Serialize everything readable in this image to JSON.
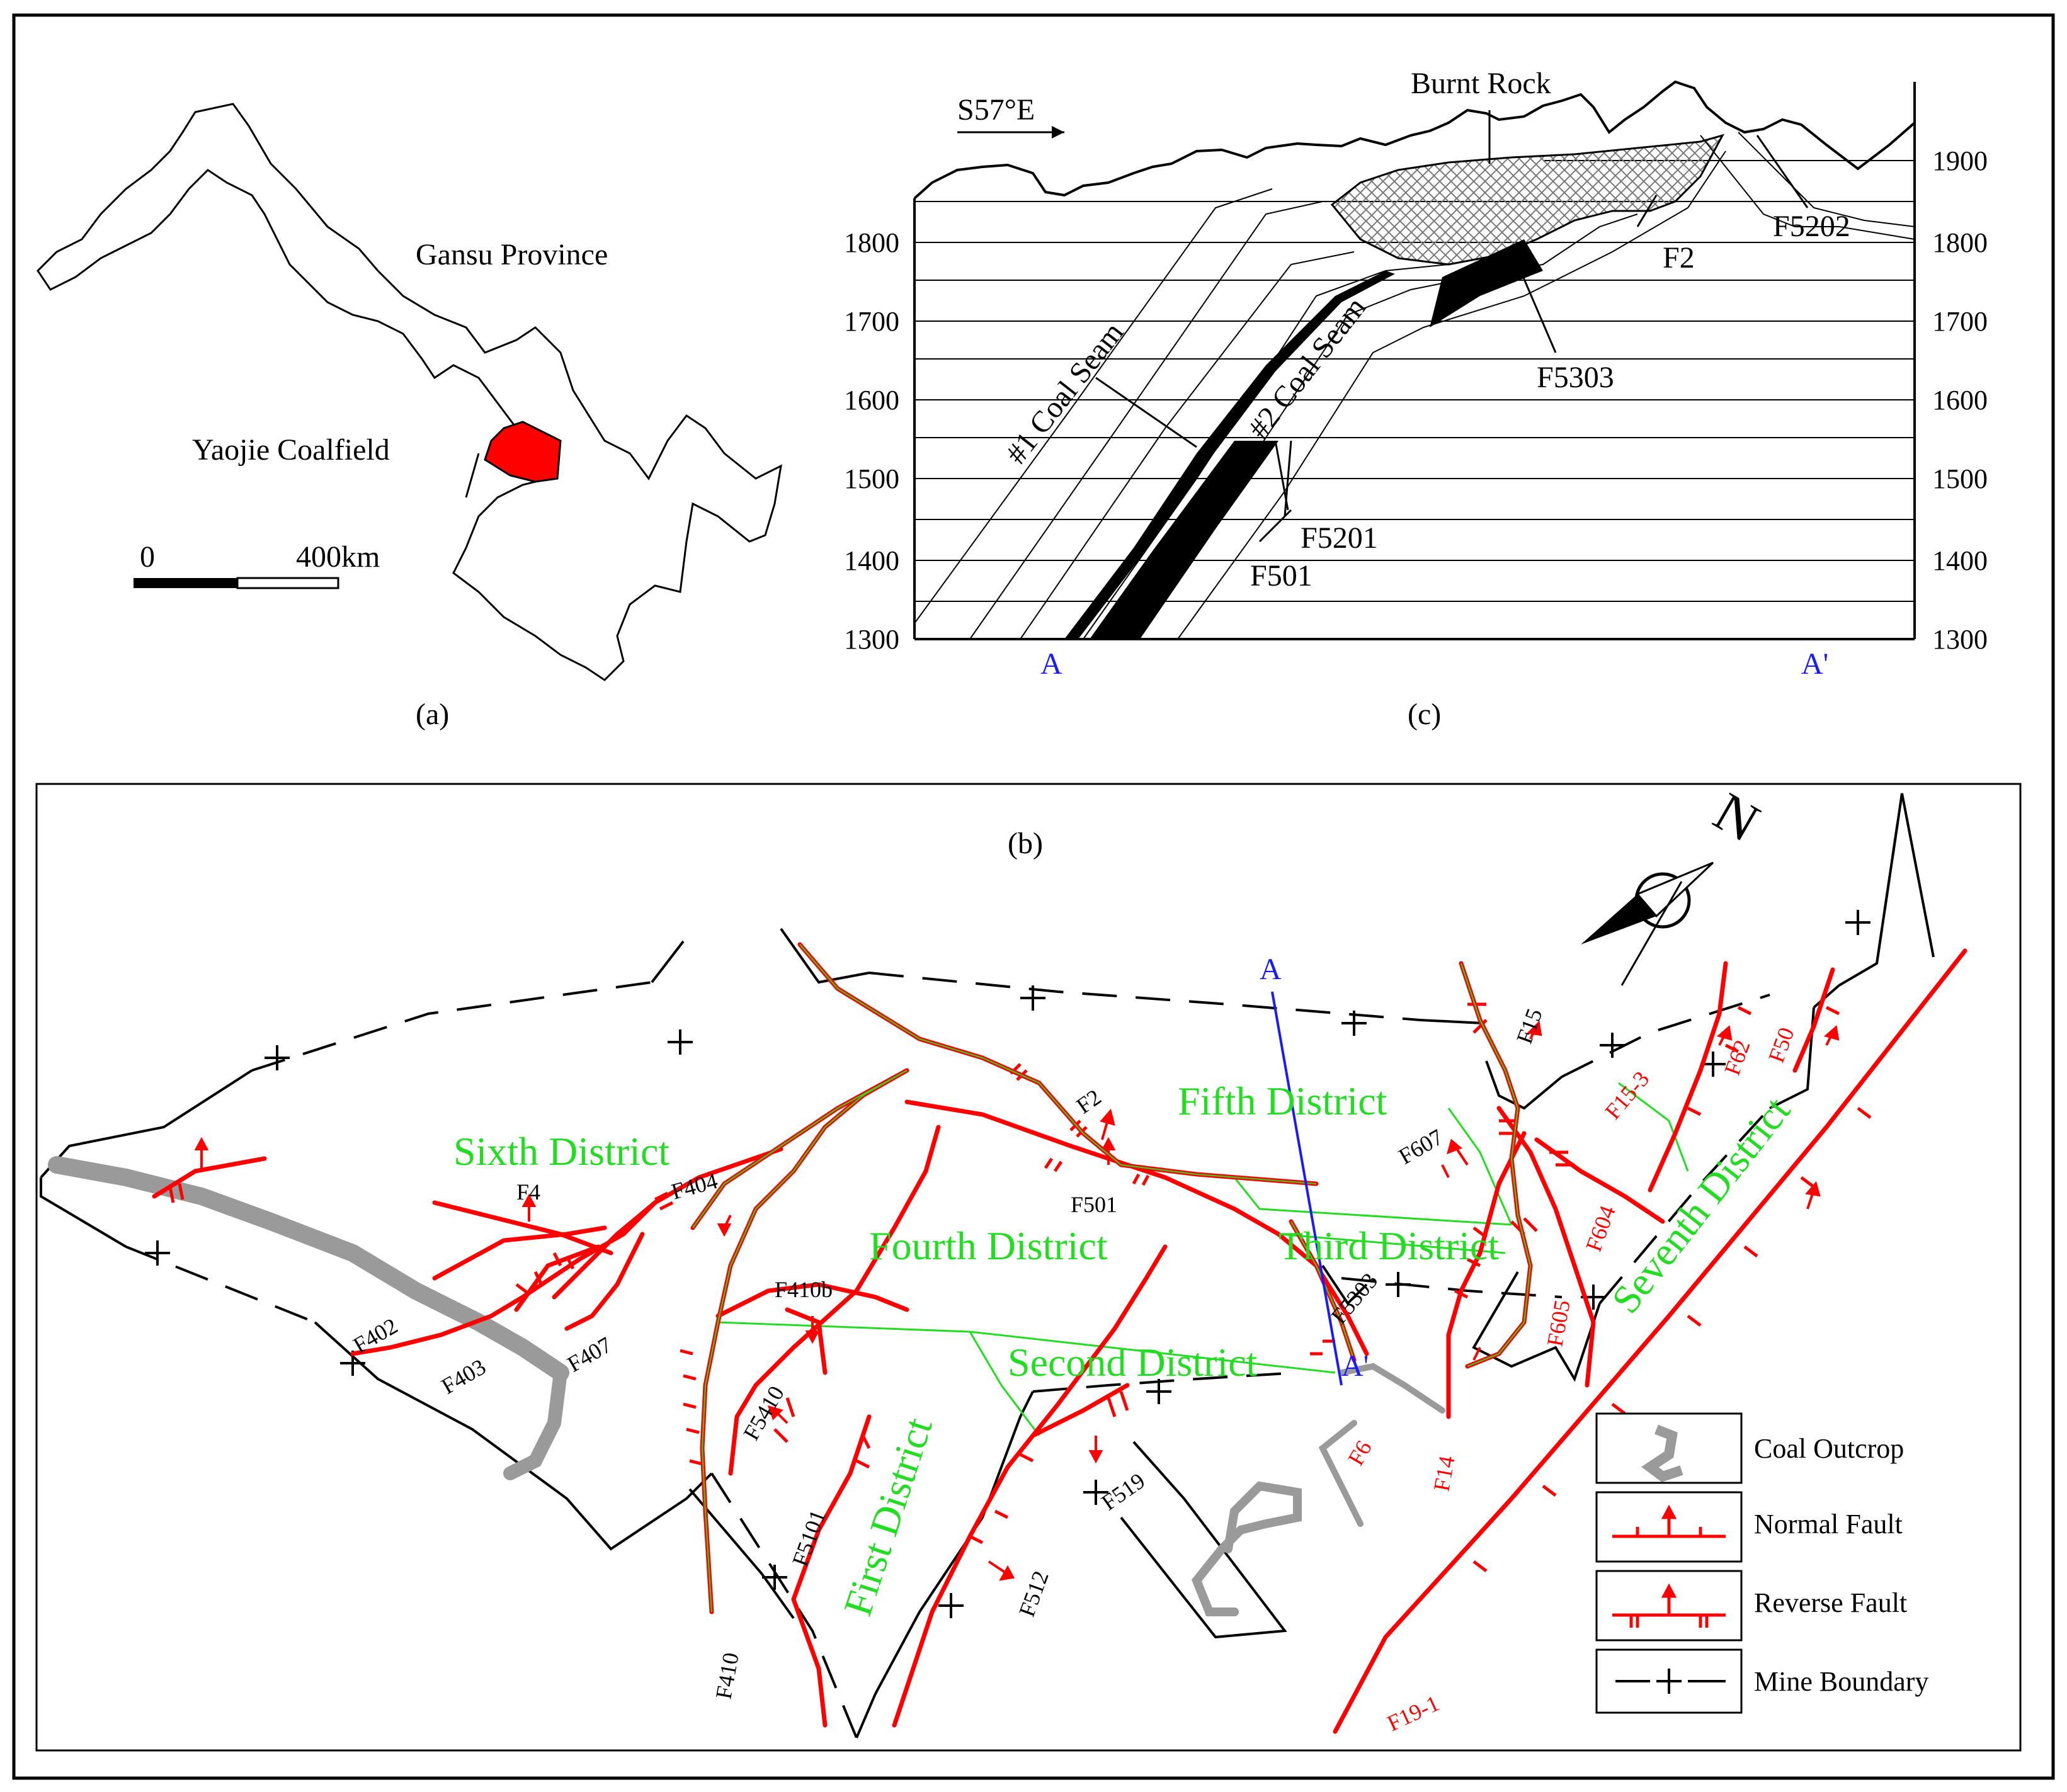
{
  "panel_a": {
    "caption": "(a)",
    "province_label": "Gansu Province",
    "coalfield_label": "Yaojie Coalfield",
    "scale_start": "0",
    "scale_end": "400km",
    "coalfield_color": "#ff0000"
  },
  "panel_c": {
    "caption": "(c)",
    "direction": "S57°E",
    "burnt_rock": "Burnt Rock",
    "coal_seam_1": "#1 Coal Seam",
    "coal_seam_2": "#2 Coal Seam",
    "faults": {
      "f5202": "F5202",
      "f2": "F2",
      "f5303": "F5303",
      "f5201": "F5201",
      "f501": "F501"
    },
    "left_ticks": [
      "1800",
      "1700",
      "1600",
      "1500",
      "1400",
      "1300"
    ],
    "right_ticks": [
      "1900",
      "1800",
      "1700",
      "1600",
      "1500",
      "1400",
      "1300"
    ],
    "section_start": "A",
    "section_end": "A'"
  },
  "panel_b": {
    "caption": "(b)",
    "north": "N",
    "districts": {
      "first": "First District",
      "second": "Second District",
      "third": "Third District",
      "fourth": "Fourth District",
      "fifth": "Fifth District",
      "sixth": "Sixth District",
      "seventh": "Seventh District"
    },
    "black_faults": {
      "f4": "F4",
      "f404": "F404",
      "f402": "F402",
      "f403": "F403",
      "f407": "F407",
      "f410b": "F410b",
      "f5410": "F5410",
      "f5101": "F5101",
      "f410": "F410",
      "f512": "F512",
      "f519": "F519",
      "f2": "F2",
      "f501": "F501",
      "f607": "F607",
      "f5303": "F5303",
      "f15": "F15"
    },
    "red_faults": {
      "f6": "F6",
      "f14": "F14",
      "f605": "F605",
      "f604": "F604",
      "f15_3": "F15-3",
      "f62": "F62",
      "f50": "F50",
      "f19_1": "F19-1"
    },
    "section_start": "A",
    "section_end": "A'",
    "legend": [
      {
        "icon": "coal-outcrop",
        "label": "Coal Outcrop"
      },
      {
        "icon": "normal-fault",
        "label": "Normal Fault"
      },
      {
        "icon": "reverse-fault",
        "label": "Reverse Fault"
      },
      {
        "icon": "mine-boundary",
        "label": "Mine Boundary"
      }
    ],
    "colors": {
      "fault": "#ff0000",
      "district": "#22dd22",
      "section_line": "#1a1aff",
      "outcrop": "#999999"
    }
  }
}
